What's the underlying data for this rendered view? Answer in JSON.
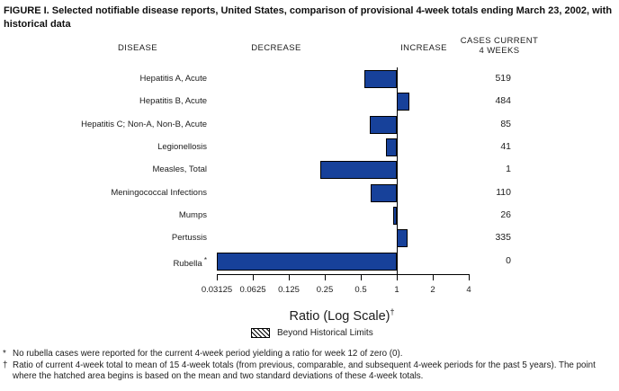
{
  "figure": {
    "title": "FIGURE I. Selected notifiable disease reports, United States, comparison of provisional 4-week totals ending March 23, 2002, with historical data"
  },
  "headers": {
    "disease": "DISEASE",
    "decrease": "DECREASE",
    "increase": "INCREASE",
    "cases_line1": "CASES CURRENT",
    "cases_line2": "4 WEEKS"
  },
  "chart_data": {
    "type": "bar",
    "orientation": "horizontal",
    "scale": "log",
    "baseline_ratio": 1,
    "axis_ticks": [
      "0.03125",
      "0.0625",
      "0.125",
      "0.25",
      "0.5",
      "1",
      "2",
      "4"
    ],
    "xlim": [
      0.03125,
      4
    ],
    "xlabel": "Ratio (Log Scale)",
    "xlabel_superscript": "†",
    "bar_color": "#17419A",
    "categories": [
      "Hepatitis A, Acute",
      "Hepatitis B, Acute",
      "Hepatitis C; Non-A, Non-B, Acute",
      "Legionellosis",
      "Measles, Total",
      "Meningococcal Infections",
      "Mumps",
      "Pertussis",
      "Rubella"
    ],
    "rows": [
      {
        "label": "Hepatitis A, Acute",
        "marker": "",
        "ratio": 0.54,
        "cases": "519"
      },
      {
        "label": "Hepatitis B, Acute",
        "marker": "",
        "ratio": 1.27,
        "cases": "484"
      },
      {
        "label": "Hepatitis C; Non-A, Non-B, Acute",
        "marker": "",
        "ratio": 0.59,
        "cases": "85"
      },
      {
        "label": "Legionellosis",
        "marker": "",
        "ratio": 0.81,
        "cases": "41"
      },
      {
        "label": "Measles, Total",
        "marker": "",
        "ratio": 0.23,
        "cases": "1"
      },
      {
        "label": "Meningococcal Infections",
        "marker": "",
        "ratio": 0.61,
        "cases": "110"
      },
      {
        "label": "Mumps",
        "marker": "",
        "ratio": 0.93,
        "cases": "26"
      },
      {
        "label": "Pertussis",
        "marker": "",
        "ratio": 1.24,
        "cases": "335"
      },
      {
        "label": "Rubella",
        "marker": "*",
        "ratio": 0.03125,
        "cases": "0"
      }
    ],
    "legend": {
      "swatch": "diagonal-hatch",
      "label": "Beyond Historical Limits",
      "position": "below-axis"
    }
  },
  "footnotes": [
    {
      "marker": "*",
      "text": "No rubella cases were reported for the current 4-week period yielding a ratio for week 12 of zero (0)."
    },
    {
      "marker": "†",
      "text": "Ratio of current 4-week total to mean of 15 4-week totals (from previous, comparable, and subsequent 4-week periods for the past 5 years). The point where the hatched area begins is based on the mean and two standard deviations of these 4-week totals."
    }
  ]
}
